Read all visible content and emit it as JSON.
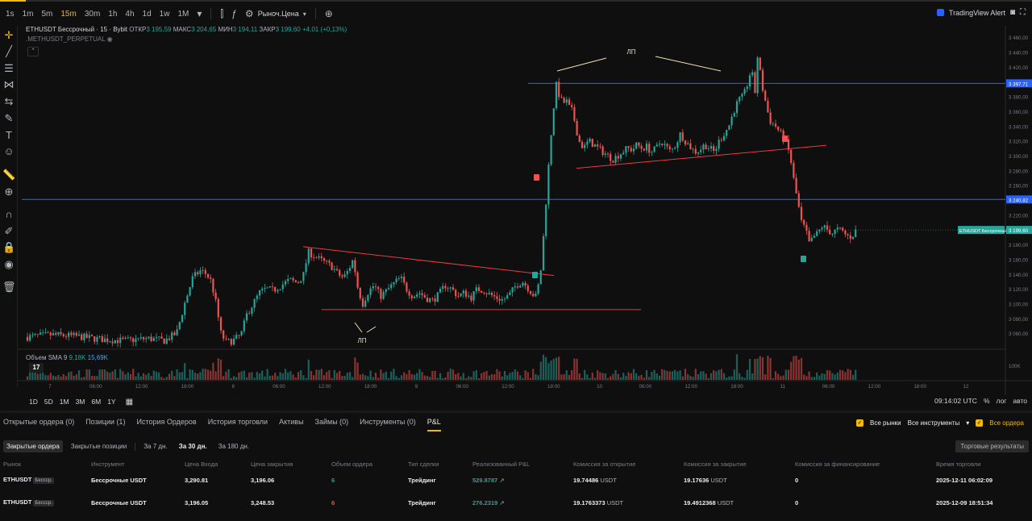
{
  "toolbar": {
    "timeframes": [
      "1s",
      "1m",
      "5m",
      "15m",
      "30m",
      "1h",
      "4h",
      "1d",
      "1w",
      "1M"
    ],
    "active_timeframe": "15m",
    "price_type": "Рыноч.Цена",
    "tv_alert": "TradingView Alert"
  },
  "legend": {
    "symbol": "ETHUSDT Бессрочный · 15 · Bybit",
    "open_label": "ОТКР",
    "open": "3 195,59",
    "high_label": "МАКС",
    "high": "3 204,65",
    "low_label": "МИН",
    "low": "3 194,11",
    "close_label": "ЗАКР",
    "close": "3 199,60",
    "change": "+4,01 (+0,13%)",
    "perpetual": ".METHUSDT_PERPETUAL"
  },
  "volume_legend": {
    "label": "Объем SMA 9",
    "v1": "9,18K",
    "v2": "15,69K"
  },
  "chart_data": {
    "type": "candlestick",
    "y_axis_ticks": [
      "3 460,00",
      "3 440,00",
      "3 420,00",
      "3 380,00",
      "3 360,00",
      "3 340,00",
      "3 320,00",
      "3 300,00",
      "3 280,00",
      "3 260,00",
      "3 220,00",
      "3 180,00",
      "3 160,00",
      "3 140,00",
      "3 120,00",
      "3 100,00",
      "3 080,00",
      "3 060,00"
    ],
    "ylim": [
      3045,
      3470
    ],
    "price_labels": {
      "upper_line": "3 397,71",
      "middle_line": "3 240,82",
      "last_price": "3 199,60",
      "last_symbol": "ETHUSDT Бессрочный"
    },
    "volume_tick": "100K",
    "x_ticks": [
      "7",
      "06:00",
      "12:00",
      "18:00",
      "8",
      "06:00",
      "12:00",
      "18:00",
      "9",
      "06:00",
      "12:00",
      "18:00",
      "10",
      "06:00",
      "12:00",
      "18:00",
      "11",
      "06:00",
      "12:00",
      "18:00",
      "12"
    ],
    "annotations": [
      "ЛП",
      "ЛП"
    ],
    "horizontal_lines": [
      3397.71,
      3240.82
    ],
    "price_path": [
      [
        0,
        3055
      ],
      [
        30,
        3058
      ],
      [
        60,
        3056
      ],
      [
        90,
        3052
      ],
      [
        120,
        3050
      ],
      [
        150,
        3053
      ],
      [
        170,
        3050
      ],
      [
        185,
        3060
      ],
      [
        195,
        3100
      ],
      [
        205,
        3135
      ],
      [
        215,
        3145
      ],
      [
        222,
        3140
      ],
      [
        228,
        3130
      ],
      [
        234,
        3100
      ],
      [
        240,
        3060
      ],
      [
        246,
        3048
      ],
      [
        255,
        3050
      ],
      [
        265,
        3058
      ],
      [
        272,
        3085
      ],
      [
        280,
        3100
      ],
      [
        288,
        3115
      ],
      [
        296,
        3120
      ],
      [
        305,
        3118
      ],
      [
        315,
        3125
      ],
      [
        325,
        3132
      ],
      [
        335,
        3128
      ],
      [
        343,
        3140
      ],
      [
        348,
        3170
      ],
      [
        355,
        3165
      ],
      [
        362,
        3160
      ],
      [
        370,
        3155
      ],
      [
        378,
        3150
      ],
      [
        385,
        3140
      ],
      [
        392,
        3135
      ],
      [
        398,
        3145
      ],
      [
        404,
        3160
      ],
      [
        410,
        3120
      ],
      [
        416,
        3100
      ],
      [
        422,
        3115
      ],
      [
        430,
        3125
      ],
      [
        438,
        3110
      ],
      [
        446,
        3118
      ],
      [
        455,
        3128
      ],
      [
        463,
        3135
      ],
      [
        470,
        3120
      ],
      [
        478,
        3110
      ],
      [
        486,
        3115
      ],
      [
        494,
        3108
      ],
      [
        502,
        3104
      ],
      [
        510,
        3112
      ],
      [
        518,
        3125
      ],
      [
        526,
        3120
      ],
      [
        534,
        3110
      ],
      [
        542,
        3115
      ],
      [
        550,
        3108
      ],
      [
        558,
        3120
      ],
      [
        566,
        3118
      ],
      [
        574,
        3112
      ],
      [
        582,
        3108
      ],
      [
        590,
        3105
      ],
      [
        598,
        3112
      ],
      [
        606,
        3125
      ],
      [
        614,
        3130
      ],
      [
        622,
        3120
      ],
      [
        630,
        3108
      ],
      [
        636,
        3135
      ],
      [
        640,
        3190
      ],
      [
        644,
        3250
      ],
      [
        648,
        3310
      ],
      [
        652,
        3360
      ],
      [
        656,
        3395
      ],
      [
        660,
        3380
      ],
      [
        664,
        3370
      ],
      [
        668,
        3375
      ],
      [
        672,
        3365
      ],
      [
        676,
        3360
      ],
      [
        680,
        3340
      ],
      [
        684,
        3320
      ],
      [
        690,
        3310
      ],
      [
        696,
        3320
      ],
      [
        702,
        3315
      ],
      [
        708,
        3310
      ],
      [
        714,
        3305
      ],
      [
        720,
        3300
      ],
      [
        726,
        3295
      ],
      [
        732,
        3300
      ],
      [
        738,
        3305
      ],
      [
        744,
        3310
      ],
      [
        750,
        3308
      ],
      [
        756,
        3315
      ],
      [
        762,
        3310
      ],
      [
        768,
        3312
      ],
      [
        774,
        3305
      ],
      [
        780,
        3310
      ],
      [
        786,
        3320
      ],
      [
        792,
        3312
      ],
      [
        798,
        3305
      ],
      [
        804,
        3315
      ],
      [
        810,
        3330
      ],
      [
        816,
        3320
      ],
      [
        822,
        3312
      ],
      [
        828,
        3305
      ],
      [
        834,
        3308
      ],
      [
        840,
        3315
      ],
      [
        846,
        3310
      ],
      [
        852,
        3305
      ],
      [
        858,
        3320
      ],
      [
        864,
        3330
      ],
      [
        870,
        3340
      ],
      [
        876,
        3360
      ],
      [
        882,
        3375
      ],
      [
        888,
        3380
      ],
      [
        894,
        3400
      ],
      [
        898,
        3420
      ],
      [
        902,
        3380
      ],
      [
        906,
        3440
      ],
      [
        910,
        3400
      ],
      [
        914,
        3380
      ],
      [
        918,
        3360
      ],
      [
        922,
        3345
      ],
      [
        928,
        3340
      ],
      [
        934,
        3330
      ],
      [
        940,
        3320
      ],
      [
        946,
        3300
      ],
      [
        950,
        3270
      ],
      [
        955,
        3240
      ],
      [
        960,
        3210
      ],
      [
        965,
        3200
      ],
      [
        970,
        3180
      ],
      [
        975,
        3190
      ],
      [
        980,
        3195
      ],
      [
        986,
        3205
      ],
      [
        992,
        3200
      ],
      [
        998,
        3195
      ],
      [
        1004,
        3200
      ],
      [
        1010,
        3198
      ],
      [
        1016,
        3192
      ],
      [
        1022,
        3190
      ],
      [
        1028,
        3199.6
      ]
    ]
  },
  "left_tools": [
    "crosshair-icon",
    "trendline-icon",
    "fib-icon",
    "pattern-icon",
    "measure-icon",
    "brush-icon",
    "text-icon",
    "emoji-icon",
    "ruler-icon",
    "zoom-icon",
    "magnet-icon",
    "lock-draw-icon",
    "lock-icon",
    "eye-icon",
    "trash-icon"
  ],
  "range_buttons": [
    "1D",
    "5D",
    "1M",
    "3M",
    "6M",
    "1Y"
  ],
  "bottom_right": {
    "time": "09:14:02 UTC",
    "percent": "%",
    "log": "лог",
    "auto": "авто"
  },
  "panel": {
    "tabs": [
      "Открытые ордера (0)",
      "Позиции (1)",
      "История Ордеров",
      "История торговли",
      "Активы",
      "Займы (0)",
      "Инструменты (0)",
      "P&L"
    ],
    "active_tab": "P&L",
    "all_markets": "Все рынки",
    "all_instruments": "Все инструменты",
    "all_orders": "Все ордера",
    "subtabs": [
      "Закрытые ордера",
      "Закрытые позиции",
      "За 7 дн.",
      "За 30 дн.",
      "За 180 дн."
    ],
    "trade_results": "Торговые результаты",
    "columns": [
      "Рынок",
      "Инструмент",
      "Цена Входа",
      "Цена закрытия",
      "Объем ордера",
      "Тип сделки",
      "Реализованный P&L",
      "Комиссия за открытие",
      "Комиссия за закрытие",
      "Комиссия за финансирование",
      "Время торговли"
    ],
    "rows": [
      {
        "market": "ETHUSDT",
        "badge": "Бессср.",
        "instrument": "Бессрочные USDT",
        "entry": "3,290.81",
        "close": "3,196.06",
        "qty": "6",
        "type": "Трейдинг",
        "pnl": "529.8787",
        "fee_open": "19.74486",
        "fee_open_unit": "USDT",
        "fee_close": "19.17636",
        "fee_close_unit": "USDT",
        "funding": "0",
        "time": "2025-12-11 06:02:09"
      },
      {
        "market": "ETHUSDT",
        "badge": "Бессср.",
        "instrument": "Бессрочные USDT",
        "entry": "3,196.05",
        "close": "3,248.53",
        "qty": "6",
        "type": "Трейдинг",
        "pnl": "276.2319",
        "fee_open": "19.1763373",
        "fee_open_unit": "USDT",
        "fee_close": "19.4912368",
        "fee_close_unit": "USDT",
        "funding": "0",
        "time": "2025-12-09 18:51:34"
      }
    ]
  },
  "colors": {
    "up": "#26a69a",
    "down": "#ef5350",
    "line_blue": "#2962ff",
    "trend_red": "#f23645",
    "accent": "#f0b90b"
  }
}
